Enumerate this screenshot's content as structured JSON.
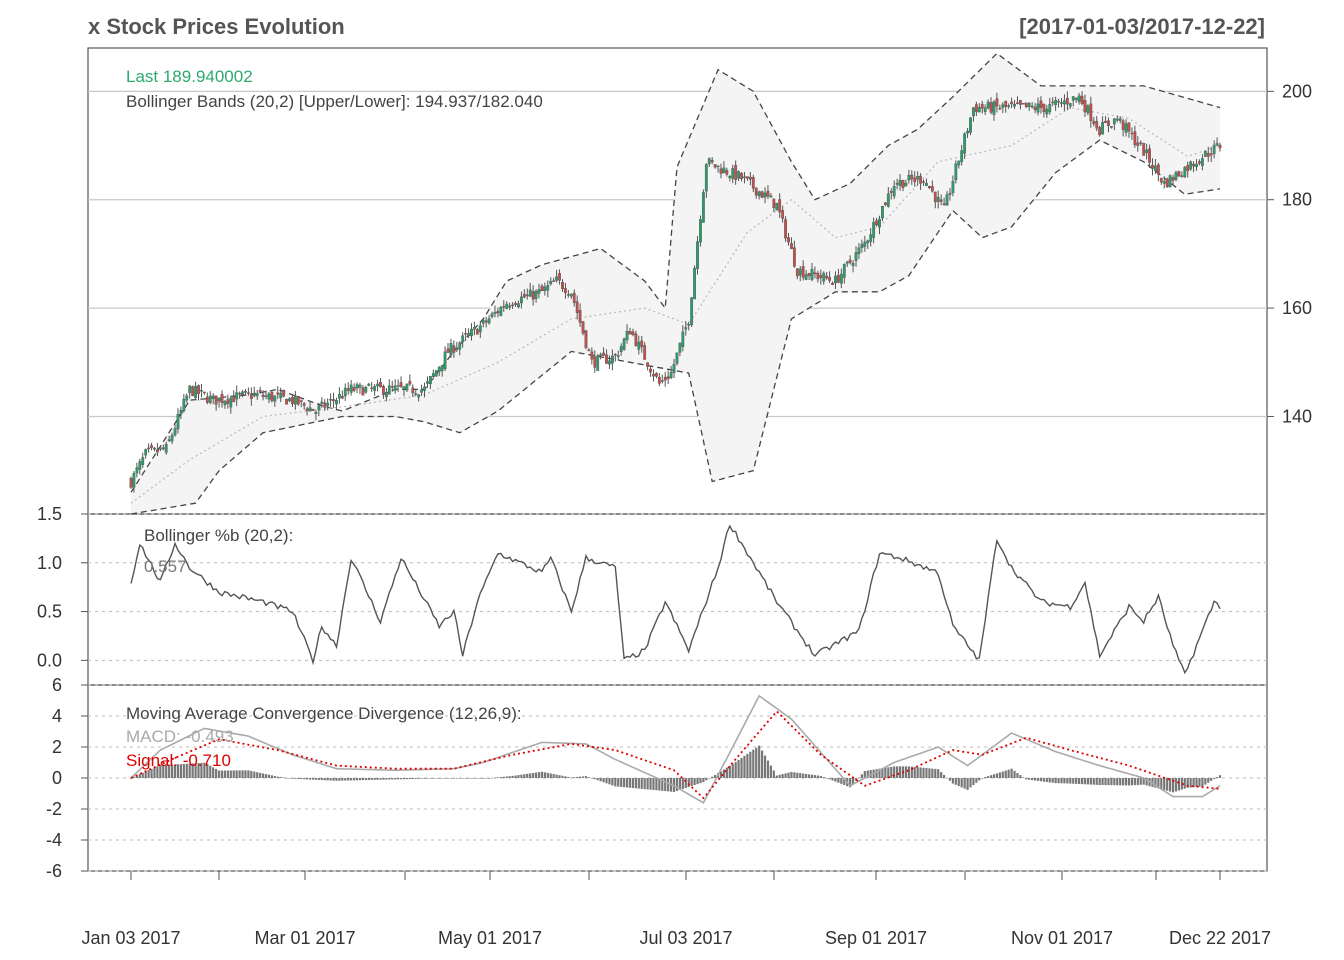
{
  "header": {
    "title": "x Stock Prices Evolution",
    "range": "[2017-01-03/2017-12-22]"
  },
  "legends": {
    "last": "Last 189.940002",
    "bbands": "Bollinger Bands (20,2) [Upper/Lower]: 194.937/182.040",
    "pctb_title": "Bollinger %b (20,2):",
    "pctb_value": "0.557",
    "macd_title": "Moving Average Convergence Divergence (12,26,9):",
    "macd_value": "MACD: -0.493",
    "signal_value": "Signal: -0.710"
  },
  "colors": {
    "up": "#2e9c6a",
    "down": "#c0504d",
    "wick": "#555555",
    "band_fill": "#f4f4f4",
    "band_line": "#444444",
    "sma": "#bbbbbb",
    "pctb_line": "#555555",
    "macd_line": "#aaaaaa",
    "signal_line": "#dd0000",
    "hist": "#777777",
    "last_label": "#2eaa6e",
    "signal_label": "#dd0000",
    "macd_label": "#aaaaaa"
  },
  "chart_data": [
    {
      "type": "candlestick",
      "title": "x Stock Prices Evolution",
      "x_range": [
        "2017-01-03",
        "2017-12-22"
      ],
      "x_ticks": [
        "Jan 03 2017",
        "Mar 01 2017",
        "May 01 2017",
        "Jul 03 2017",
        "Sep 01 2017",
        "Nov 01 2017",
        "Dec 22 2017"
      ],
      "y_ticks": [
        140,
        160,
        180,
        200
      ],
      "ylim": [
        122,
        208
      ],
      "grid": true,
      "anchors": {
        "close": [
          [
            0,
            128
          ],
          [
            5,
            133
          ],
          [
            12,
            134
          ],
          [
            20,
            145
          ],
          [
            28,
            143
          ],
          [
            42,
            144
          ],
          [
            55,
            143
          ],
          [
            63,
            141
          ],
          [
            75,
            145
          ],
          [
            90,
            145
          ],
          [
            100,
            145
          ],
          [
            108,
            152
          ],
          [
            120,
            157
          ],
          [
            128,
            161
          ],
          [
            140,
            163
          ],
          [
            145,
            165
          ],
          [
            150,
            163
          ],
          [
            157,
            150
          ],
          [
            165,
            151
          ],
          [
            170,
            156
          ],
          [
            180,
            146
          ],
          [
            184,
            148
          ],
          [
            190,
            158
          ],
          [
            196,
            187
          ],
          [
            208,
            184
          ],
          [
            220,
            179
          ],
          [
            227,
            167
          ],
          [
            240,
            165
          ],
          [
            250,
            172
          ],
          [
            260,
            183
          ],
          [
            270,
            184
          ],
          [
            277,
            178
          ],
          [
            287,
            197
          ],
          [
            300,
            197
          ],
          [
            312,
            197
          ],
          [
            323,
            199
          ],
          [
            330,
            193
          ],
          [
            336,
            195
          ],
          [
            345,
            189
          ],
          [
            352,
            183
          ],
          [
            365,
            188
          ],
          [
            371,
            190
          ]
        ],
        "upper": [
          [
            0,
            126
          ],
          [
            20,
            143
          ],
          [
            40,
            144
          ],
          [
            50,
            145
          ],
          [
            65,
            142
          ],
          [
            72,
            141
          ],
          [
            90,
            145
          ],
          [
            100,
            145
          ],
          [
            110,
            152
          ],
          [
            120,
            158
          ],
          [
            128,
            165
          ],
          [
            140,
            168
          ],
          [
            160,
            171
          ],
          [
            175,
            165
          ],
          [
            182,
            160
          ],
          [
            186,
            186
          ],
          [
            200,
            204
          ],
          [
            212,
            200
          ],
          [
            225,
            187
          ],
          [
            233,
            180
          ],
          [
            245,
            183
          ],
          [
            258,
            190
          ],
          [
            268,
            193
          ],
          [
            280,
            199
          ],
          [
            295,
            207
          ],
          [
            310,
            201
          ],
          [
            330,
            201
          ],
          [
            345,
            201
          ],
          [
            371,
            197
          ]
        ],
        "lower": [
          [
            0,
            122
          ],
          [
            22,
            124
          ],
          [
            30,
            130
          ],
          [
            45,
            137
          ],
          [
            72,
            140
          ],
          [
            90,
            140
          ],
          [
            100,
            139
          ],
          [
            112,
            137
          ],
          [
            125,
            141
          ],
          [
            150,
            152
          ],
          [
            170,
            150
          ],
          [
            190,
            148
          ],
          [
            198,
            128
          ],
          [
            212,
            130
          ],
          [
            225,
            158
          ],
          [
            240,
            163
          ],
          [
            255,
            163
          ],
          [
            265,
            166
          ],
          [
            280,
            178
          ],
          [
            290,
            173
          ],
          [
            300,
            175
          ],
          [
            315,
            185
          ],
          [
            330,
            191
          ],
          [
            345,
            187
          ],
          [
            359,
            181
          ],
          [
            371,
            182
          ]
        ],
        "sma": [
          [
            0,
            124
          ],
          [
            20,
            132
          ],
          [
            45,
            140
          ],
          [
            75,
            142
          ],
          [
            100,
            144
          ],
          [
            125,
            150
          ],
          [
            150,
            158
          ],
          [
            175,
            160
          ],
          [
            190,
            157
          ],
          [
            210,
            174
          ],
          [
            225,
            180
          ],
          [
            240,
            173
          ],
          [
            255,
            175
          ],
          [
            275,
            187
          ],
          [
            300,
            190
          ],
          [
            320,
            197
          ],
          [
            340,
            195
          ],
          [
            360,
            188
          ],
          [
            371,
            190
          ]
        ]
      }
    },
    {
      "type": "line",
      "title": "Bollinger %b (20,2):",
      "y_ticks": [
        0.0,
        0.5,
        1.0,
        1.5
      ],
      "ylim": [
        -0.15,
        1.5
      ],
      "grid": true,
      "anchors": [
        [
          0,
          0.8
        ],
        [
          3,
          1.2
        ],
        [
          10,
          0.8
        ],
        [
          15,
          1.2
        ],
        [
          20,
          0.95
        ],
        [
          30,
          0.7
        ],
        [
          45,
          0.6
        ],
        [
          55,
          0.5
        ],
        [
          62,
          0.0
        ],
        [
          65,
          0.35
        ],
        [
          70,
          0.15
        ],
        [
          75,
          1.05
        ],
        [
          85,
          0.4
        ],
        [
          92,
          1.05
        ],
        [
          105,
          0.35
        ],
        [
          110,
          0.5
        ],
        [
          113,
          0.05
        ],
        [
          118,
          0.6
        ],
        [
          125,
          1.1
        ],
        [
          140,
          0.9
        ],
        [
          143,
          1.05
        ],
        [
          150,
          0.5
        ],
        [
          155,
          1.05
        ],
        [
          165,
          0.95
        ],
        [
          168,
          0.0
        ],
        [
          175,
          0.1
        ],
        [
          182,
          0.6
        ],
        [
          190,
          0.1
        ],
        [
          200,
          0.95
        ],
        [
          204,
          1.4
        ],
        [
          220,
          0.6
        ],
        [
          233,
          0.05
        ],
        [
          248,
          0.3
        ],
        [
          255,
          1.1
        ],
        [
          262,
          1.05
        ],
        [
          275,
          0.9
        ],
        [
          280,
          0.35
        ],
        [
          289,
          0.0
        ],
        [
          295,
          1.25
        ],
        [
          300,
          0.95
        ],
        [
          310,
          0.6
        ],
        [
          320,
          0.55
        ],
        [
          325,
          0.8
        ],
        [
          330,
          0.05
        ],
        [
          340,
          0.55
        ],
        [
          345,
          0.4
        ],
        [
          350,
          0.65
        ],
        [
          355,
          0.15
        ],
        [
          359,
          -0.15
        ],
        [
          365,
          0.3
        ],
        [
          369,
          0.6
        ],
        [
          371,
          0.557
        ]
      ]
    },
    {
      "type": "line",
      "title": "Moving Average Convergence Divergence (12,26,9):",
      "y_ticks": [
        -6,
        -4,
        -2,
        0,
        2,
        4,
        6
      ],
      "ylim": [
        -6,
        6
      ],
      "grid": true,
      "macd_anchors": [
        [
          0,
          0
        ],
        [
          10,
          1.8
        ],
        [
          25,
          3.2
        ],
        [
          40,
          2.7
        ],
        [
          55,
          1.5
        ],
        [
          70,
          0.6
        ],
        [
          90,
          0.5
        ],
        [
          110,
          0.6
        ],
        [
          120,
          1.0
        ],
        [
          140,
          2.3
        ],
        [
          155,
          2.2
        ],
        [
          165,
          1.2
        ],
        [
          185,
          -0.5
        ],
        [
          195,
          -1.6
        ],
        [
          205,
          2.0
        ],
        [
          214,
          5.3
        ],
        [
          225,
          3.8
        ],
        [
          245,
          -0.5
        ],
        [
          260,
          1.0
        ],
        [
          275,
          2.0
        ],
        [
          285,
          0.8
        ],
        [
          300,
          2.9
        ],
        [
          315,
          1.7
        ],
        [
          330,
          0.8
        ],
        [
          345,
          0.0
        ],
        [
          355,
          -1.2
        ],
        [
          365,
          -1.2
        ],
        [
          371,
          -0.5
        ]
      ],
      "signal_anchors": [
        [
          0,
          0
        ],
        [
          15,
          1.3
        ],
        [
          30,
          2.5
        ],
        [
          50,
          1.8
        ],
        [
          70,
          0.8
        ],
        [
          90,
          0.6
        ],
        [
          110,
          0.6
        ],
        [
          130,
          1.5
        ],
        [
          150,
          2.2
        ],
        [
          165,
          1.8
        ],
        [
          185,
          0.5
        ],
        [
          195,
          -1.3
        ],
        [
          205,
          1.0
        ],
        [
          220,
          4.3
        ],
        [
          235,
          1.5
        ],
        [
          250,
          -0.5
        ],
        [
          265,
          0.5
        ],
        [
          280,
          1.8
        ],
        [
          290,
          1.5
        ],
        [
          305,
          2.6
        ],
        [
          320,
          1.8
        ],
        [
          340,
          0.8
        ],
        [
          360,
          -0.5
        ],
        [
          371,
          -0.7
        ]
      ]
    }
  ]
}
